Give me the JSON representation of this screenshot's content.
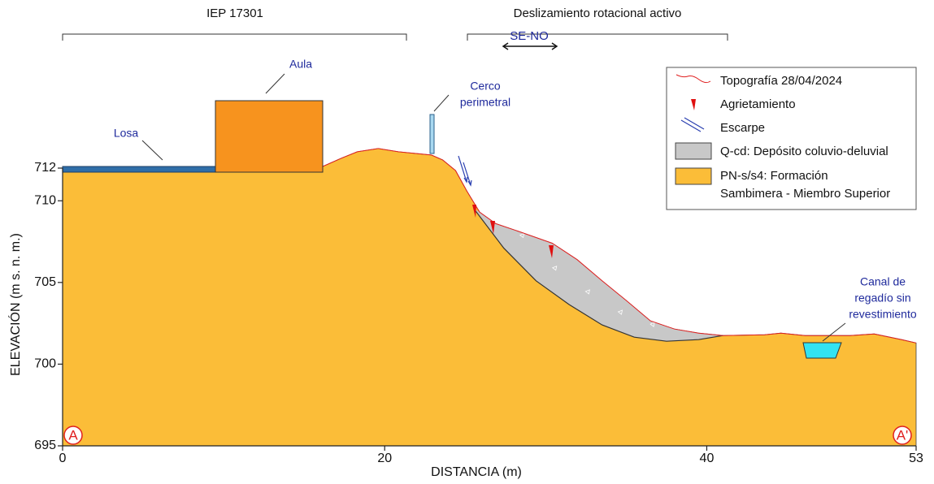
{
  "chart_data": {
    "type": "cross-section",
    "xlabel": "DISTANCIA (m)",
    "ylabel": "ELEVACIÓN (m s. n. m.)",
    "xlim": [
      0,
      53
    ],
    "ylim": [
      695,
      712
    ],
    "xticks": [
      0,
      20,
      40,
      53
    ],
    "yticks": [
      695,
      700,
      705,
      710,
      712
    ],
    "series": [
      {
        "name": "Topografía 28/04/2024",
        "color": "#e02020",
        "x": [
          0,
          9.5,
          16.15,
          17.3,
          18.3,
          19.6,
          20.85,
          22.9,
          23.6,
          24.4,
          25.1,
          25.9,
          26.9,
          28.4,
          30.4,
          31.95,
          33.5,
          35.0,
          36.5,
          38.0,
          39.5,
          41.0,
          43.6,
          44.6,
          46.1,
          48.4,
          48.9,
          50.4,
          52.1,
          53
        ],
        "values": [
          711.75,
          711.75,
          712.1,
          712.6,
          713.0,
          713.2,
          713.0,
          712.8,
          712.5,
          711.85,
          710.6,
          709.3,
          708.6,
          708.1,
          707.4,
          706.4,
          705.1,
          703.9,
          702.65,
          702.15,
          701.9,
          701.75,
          701.8,
          701.9,
          701.75,
          701.75,
          701.75,
          701.85,
          701.5,
          701.3
        ]
      },
      {
        "name": "Q-cd: Depósito coluvio-deluvial",
        "color": "#c8c8c8",
        "x": [
          25.55,
          27.4,
          29.4,
          31.45,
          33.5,
          35.5,
          37.5,
          39.5,
          41.0
        ],
        "values": [
          709.5,
          707.1,
          705.1,
          703.65,
          702.4,
          701.65,
          701.4,
          701.5,
          701.75
        ]
      }
    ],
    "formation": {
      "name": [
        "PN-s/s4: Formación",
        "Sambimera - Miembro Superior"
      ],
      "color": "#fbbd38"
    },
    "legend_symbols": {
      "cracks": "Agrietamiento",
      "scarp": "Escarpe"
    },
    "section_labels": [
      "A",
      "A'"
    ],
    "brackets": [
      "IEP 17301",
      "Deslizamiento rotacional activo"
    ],
    "direction": "SE-NO",
    "annotations": [
      [
        "Losa"
      ],
      [
        "Aula"
      ],
      [
        "Cerco",
        "perimetral"
      ],
      [
        "Canal de",
        "regadío sin",
        "revestimiento"
      ]
    ]
  }
}
